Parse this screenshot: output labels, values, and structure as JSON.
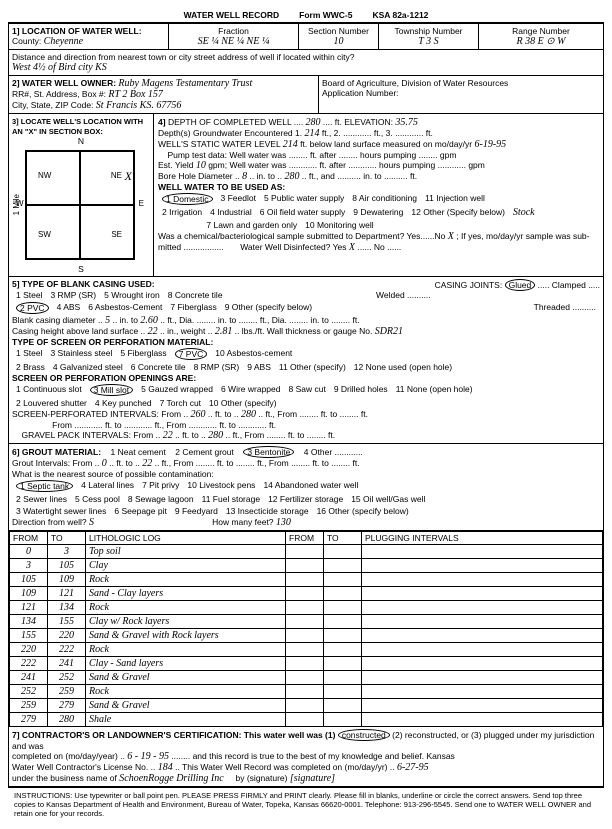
{
  "form": {
    "title": "WATER WELL RECORD",
    "form_no": "Form WWC-5",
    "ksa": "KSA 82a-1212"
  },
  "sec1": {
    "label": "1] LOCATION OF WATER WELL:",
    "county_lbl": "County:",
    "county": "Cheyenne",
    "fraction_lbl": "Fraction",
    "fraction": "SE ¼  NE ¼  NE ¼",
    "section_lbl": "Section Number",
    "section": "10",
    "township_lbl": "Township Number",
    "township": "T   3   S",
    "range_lbl": "Range Number",
    "range": "R   38   E ⊙ W",
    "dist_lbl": "Distance and direction from nearest town or city street address of well if located within city?",
    "dist": "West  4½  of  Bird  city  KS"
  },
  "sec2": {
    "label": "2] WATER WELL OWNER:",
    "owner": "Ruby Magens  Testamentary Trust",
    "rr_lbl": "RR#, St. Address, Box #:",
    "rr": "RT 2  Box 157",
    "city_lbl": "City, State, ZIP Code:",
    "city": "St Francis   KS. 67756",
    "board": "Board of Agriculture, Division of Water Resources",
    "appno_lbl": "Application Number:"
  },
  "sec3": {
    "label": "3] LOCATE WELL'S LOCATION WITH AN \"X\" IN SECTION BOX:",
    "n": "N",
    "s": "S",
    "e": "E",
    "w": "W",
    "nw": "NW",
    "ne": "NE",
    "sw": "SW",
    "se": "SE",
    "mark": "X",
    "mile": "1 Mile"
  },
  "sec4": {
    "label": "4]",
    "depth_lbl": "DEPTH OF COMPLETED WELL",
    "depth": "280",
    "ft": "ft.",
    "elev_lbl": "ELEVATION:",
    "elev": "35.75",
    "gw_lbl": "Depth(s) Groundwater Encountered  1.",
    "gw1": "214",
    "ft2": "ft.,   2.",
    "ft3": "ft.,   3.",
    "ftend": "ft.",
    "static_lbl": "WELL'S STATIC WATER LEVEL",
    "static": "214",
    "static_tail": "ft. below land surface measured on mo/day/yr",
    "static_date": "6-19-95",
    "pump_lbl": "Pump test data: Well water was ........ ft. after ........ hours pumping ........ gpm",
    "est_lbl": "Est. Yield",
    "est": "10",
    "est_tail": "gpm; Well water was ............ ft. after ............ hours pumping ............ gpm",
    "bore_lbl": "Bore Hole Diameter",
    "bore": "8",
    "bore_mid": "in. to",
    "bore_to": "280",
    "bore_tail": "ft., and .......... in. to .......... ft.",
    "use_lbl": "WELL WATER TO BE USED AS:",
    "uses": [
      "1 Domestic",
      "2 Irrigation",
      "3 Feedlot",
      "4 Industrial",
      "5 Public water supply",
      "6 Oil field water supply",
      "7 Lawn and garden only",
      "8 Air conditioning",
      "9 Dewatering",
      "10 Monitoring well",
      "11 Injection well",
      "12 Other (Specify below)"
    ],
    "use_domestic_circled": true,
    "use_other": "Stock",
    "chem_lbl": "Was a chemical/bacteriological sample submitted to Department? Yes......No",
    "chem": "X",
    "chem_tail": "; If yes, mo/day/yr sample was sub-",
    "mitted_lbl": "mitted .................",
    "disinfect_lbl": "Water Well Disinfected? Yes",
    "disinfect": "X",
    "disinfect_tail": "...... No ......"
  },
  "sec5": {
    "label": "5] TYPE OF BLANK CASING USED:",
    "opts": [
      "1 Steel",
      "2 PVC",
      "3 RMP (SR)",
      "4 ABS",
      "5 Wrought iron",
      "6 Asbestos-Cement",
      "7 Fiberglass",
      "8 Concrete tile",
      "9 Other (specify below)"
    ],
    "pvc_circled": true,
    "joints_lbl": "CASING JOINTS:",
    "joints_opts": [
      "Glued",
      "Welded",
      "Threaded",
      "Clamped"
    ],
    "joints_circled": "Glued",
    "bcd_lbl": "Blank casing diameter",
    "bcd": "5",
    "bcd_mid": "in. to",
    "bcd_to": "2.60",
    "bcd_tail": "ft., Dia. ........ in. to ........ ft., Dia. ........ in. to ........ ft.",
    "cah_lbl": "Casing height above land surface",
    "cah": "22",
    "cah_mid": "in., weight",
    "cah_wt": "2.81",
    "cah_tail": "lbs./ft. Wall thickness or gauge No.",
    "gauge": "SDR21",
    "screen_lbl": "TYPE OF SCREEN OR PERFORATION MATERIAL:",
    "screen_opts": [
      "1 Steel",
      "2 Brass",
      "3 Stainless steel",
      "4 Galvanized steel",
      "5 Fiberglass",
      "6 Concrete tile",
      "7 PVC",
      "8 RMP (SR)",
      "9 ABS",
      "10 Asbestos-cement",
      "11 Other (specify)",
      "12 None used (open hole)"
    ],
    "screen_circled": "PVC",
    "open_lbl": "SCREEN OR PERFORATION OPENINGS ARE:",
    "open_opts": [
      "1 Continuous slot",
      "2 Louvered shutter",
      "3 Mill slot",
      "4 Key punched",
      "5 Gauzed wrapped",
      "6 Wire wrapped",
      "7 Torch cut",
      "8 Saw cut",
      "9 Drilled holes",
      "10 Other (specify)",
      "11 None (open hole)"
    ],
    "open_circled": "Mill slot",
    "perf_lbl": "SCREEN-PERFORATED INTERVALS:   From",
    "perf_from": "260",
    "perf_mid": "ft. to",
    "perf_to": "280",
    "perf_tail": "ft., From ........ ft. to ........ ft.",
    "perf2": "From ............ ft. to ............ ft., From ............ ft. to ............ ft.",
    "grav_lbl": "GRAVEL PACK INTERVALS:   From",
    "grav_from": "22",
    "grav_mid": "ft. to",
    "grav_to": "280",
    "grav_tail": "ft., From ........ ft. to ........ ft."
  },
  "sec6": {
    "label": "6] GROUT MATERIAL:",
    "opts": [
      "1 Neat cement",
      "2 Cement grout",
      "3 Bentonite",
      "4 Other ............"
    ],
    "circled": "Bentonite",
    "gi_lbl": "Grout Intervals:   From",
    "gi_from": "0",
    "gi_mid": "ft. to",
    "gi_to": "22",
    "gi_tail": "ft., From ........ ft. to ........ ft., From ........ ft. to ........ ft.",
    "src_lbl": "What is the nearest source of possible contamination:",
    "src_opts": [
      "1 Septic tank",
      "2 Sewer lines",
      "3 Watertight sewer lines",
      "4 Lateral lines",
      "5 Cess pool",
      "6 Seepage pit",
      "7 Pit privy",
      "8 Sewage lagoon",
      "9 Feedyard",
      "10 Livestock pens",
      "11 Fuel storage",
      "12 Fertilizer storage",
      "13 Insecticide storage",
      "14 Abandoned water well",
      "15 Oil well/Gas well",
      "16 Other (specify below)"
    ],
    "src_circled": "Septic tank",
    "dir_lbl": "Direction from well?",
    "dir": "S",
    "feet_lbl": "How many feet?",
    "feet": "130"
  },
  "litho": {
    "hdr": [
      "FROM",
      "TO",
      "LITHOLOGIC LOG",
      "FROM",
      "TO",
      "PLUGGING INTERVALS"
    ],
    "rows": [
      [
        "0",
        "3",
        "Top soil",
        "",
        "",
        ""
      ],
      [
        "3",
        "105",
        "Clay",
        "",
        "",
        ""
      ],
      [
        "105",
        "109",
        "Rock",
        "",
        "",
        ""
      ],
      [
        "109",
        "121",
        "Sand - Clay layers",
        "",
        "",
        ""
      ],
      [
        "121",
        "134",
        "Rock",
        "",
        "",
        ""
      ],
      [
        "134",
        "155",
        "Clay  w/ Rock layers",
        "",
        "",
        ""
      ],
      [
        "155",
        "220",
        "Sand & Gravel  with  Rock layers",
        "",
        "",
        ""
      ],
      [
        "220",
        "222",
        "Rock",
        "",
        "",
        ""
      ],
      [
        "222",
        "241",
        "Clay - Sand  layers",
        "",
        "",
        ""
      ],
      [
        "241",
        "252",
        "Sand & Gravel",
        "",
        "",
        ""
      ],
      [
        "252",
        "259",
        "Rock",
        "",
        "",
        ""
      ],
      [
        "259",
        "279",
        "Sand & Gravel",
        "",
        "",
        ""
      ],
      [
        "279",
        "280",
        "Shale",
        "",
        "",
        ""
      ]
    ]
  },
  "sec7": {
    "label": "7] CONTRACTOR'S OR LANDOWNER'S CERTIFICATION: This water well was (1)",
    "constructed": "constructed",
    "tail1": "(2) reconstructed, or (3) plugged under my jurisdiction and was",
    "comp_lbl": "completed on (mo/day/year)",
    "comp_date": "6 - 19 - 95",
    "tail2": "and this record is true to the best of my knowledge and belief. Kansas",
    "lic_lbl": "Water Well Contractor's License No.",
    "lic": "184",
    "rec_lbl": "This Water Well Record was completed on (mo/day/yr)",
    "rec_date": "6-27-95",
    "bus_lbl": "under the business name of",
    "bus": "SchoenRogge Drilling Inc",
    "sig_lbl": "by (signature)",
    "sig": "[signature]"
  },
  "instr": "INSTRUCTIONS: Use typewriter or ball point pen. PLEASE PRESS FIRMLY and PRINT clearly. Please fill in blanks, underline or circle the correct answers. Send top three copies to Kansas Department of Health and Environment, Bureau of Water, Topeka, Kansas 66620-0001. Telephone: 913-296-5545. Send one to WATER WELL OWNER and retain one for your records."
}
